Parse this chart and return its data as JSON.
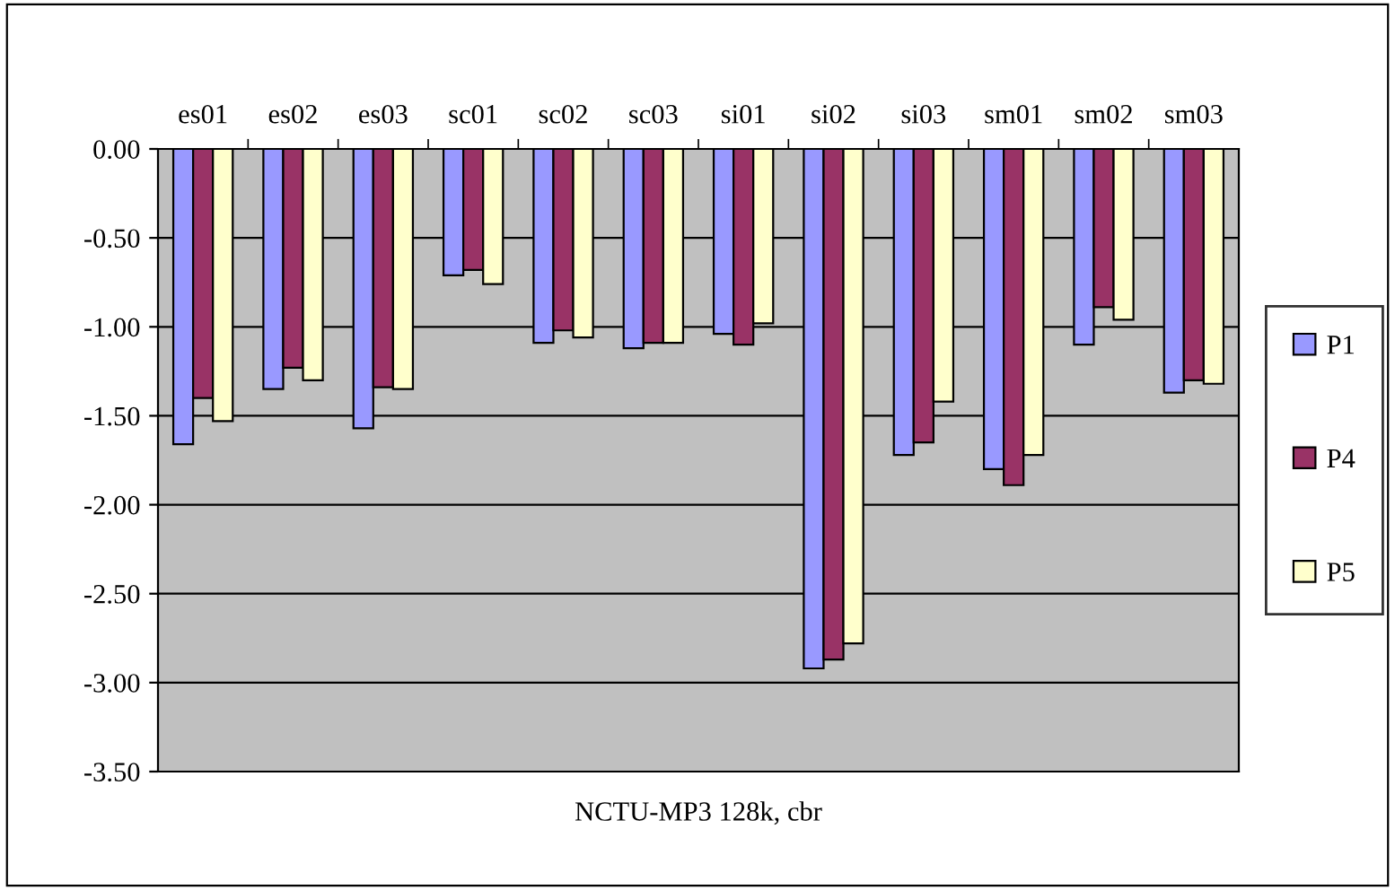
{
  "chart_data": {
    "type": "bar",
    "xlabel": "NCTU-MP3 128k, cbr",
    "categories": [
      "es01",
      "es02",
      "es03",
      "sc01",
      "sc02",
      "sc03",
      "si01",
      "si02",
      "si03",
      "sm01",
      "sm02",
      "sm03"
    ],
    "series": [
      {
        "name": "P1",
        "color": "#9999ff",
        "values": [
          -1.66,
          -1.35,
          -1.57,
          -0.71,
          -1.09,
          -1.12,
          -1.04,
          -2.92,
          -1.72,
          -1.8,
          -1.1,
          -1.37
        ]
      },
      {
        "name": "P4",
        "color": "#993366",
        "values": [
          -1.4,
          -1.23,
          -1.34,
          -0.68,
          -1.02,
          -1.09,
          -1.1,
          -2.87,
          -1.65,
          -1.89,
          -0.89,
          -1.3
        ]
      },
      {
        "name": "P5",
        "color": "#ffffcc",
        "values": [
          -1.53,
          -1.3,
          -1.35,
          -0.76,
          -1.06,
          -1.09,
          -0.98,
          -2.78,
          -1.42,
          -1.72,
          -0.96,
          -1.32
        ]
      }
    ],
    "ylim": [
      -3.5,
      0
    ],
    "yticks": [
      {
        "value": -3.5,
        "label": "-3.50"
      },
      {
        "value": -3.0,
        "label": "-3.00"
      },
      {
        "value": -2.5,
        "label": "-2.50"
      },
      {
        "value": -2.0,
        "label": "-2.00"
      },
      {
        "value": -1.5,
        "label": "-1.50"
      },
      {
        "value": -1.0,
        "label": "-1.00"
      },
      {
        "value": -0.5,
        "label": "-0.50"
      },
      {
        "value": 0,
        "label": "0.00"
      }
    ],
    "grid": "y",
    "legend": "right"
  }
}
